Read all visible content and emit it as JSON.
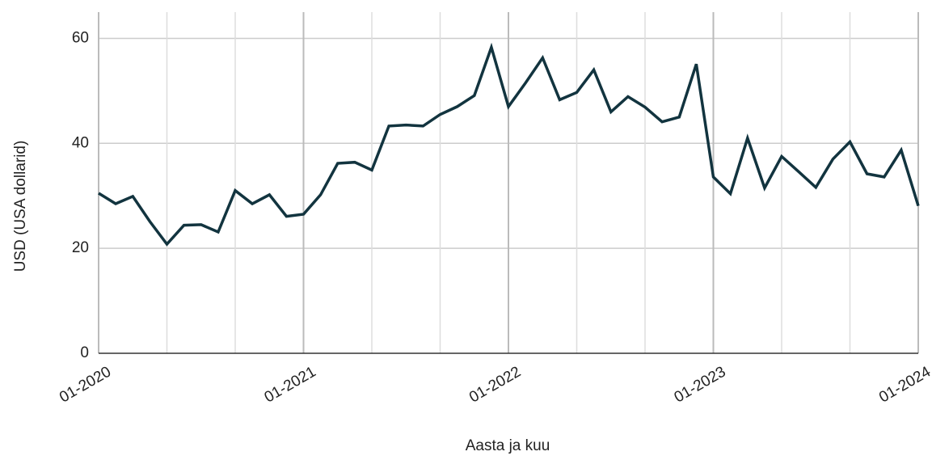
{
  "chart_data": {
    "type": "line",
    "x_label": "Aasta ja kuu",
    "y_label": "USD (USA dollarid)",
    "x": [
      "01-2020",
      "02-2020",
      "03-2020",
      "04-2020",
      "05-2020",
      "06-2020",
      "07-2020",
      "08-2020",
      "09-2020",
      "10-2020",
      "11-2020",
      "12-2020",
      "01-2021",
      "02-2021",
      "03-2021",
      "04-2021",
      "05-2021",
      "06-2021",
      "07-2021",
      "08-2021",
      "09-2021",
      "10-2021",
      "11-2021",
      "12-2021",
      "01-2022",
      "02-2022",
      "03-2022",
      "04-2022",
      "05-2022",
      "06-2022",
      "07-2022",
      "08-2022",
      "09-2022",
      "10-2022",
      "11-2022",
      "12-2022",
      "01-2023",
      "02-2023",
      "03-2023",
      "04-2023",
      "05-2023",
      "06-2023",
      "07-2023",
      "08-2023",
      "09-2023",
      "10-2023",
      "11-2023",
      "12-2023",
      "01-2024"
    ],
    "series": [
      {
        "name": "USD",
        "color": "#12343f",
        "values": [
          30.5,
          28.5,
          29.9,
          25.1,
          20.8,
          24.4,
          24.5,
          23.1,
          31.0,
          28.5,
          30.2,
          26.1,
          26.5,
          30.2,
          36.2,
          36.4,
          34.9,
          43.3,
          43.5,
          43.3,
          45.5,
          47.0,
          49.1,
          58.3,
          47.0,
          51.5,
          56.3,
          48.3,
          49.7,
          54.0,
          46.0,
          48.9,
          46.9,
          44.1,
          45.0,
          55.1,
          33.6,
          30.4,
          41.0,
          31.5,
          37.5,
          34.6,
          31.6,
          37.0,
          40.3,
          34.2,
          33.6,
          38.7,
          28.1
        ]
      }
    ],
    "xticks": [
      "01-2020",
      "01-2021",
      "01-2022",
      "01-2023",
      "01-2024"
    ],
    "minor_xticks": [
      "05-2020",
      "09-2020",
      "05-2021",
      "09-2021",
      "05-2022",
      "09-2022",
      "05-2023",
      "09-2023"
    ],
    "ylim": [
      0,
      65
    ],
    "yticks": [
      0,
      20,
      40,
      60
    ],
    "grid": true
  }
}
